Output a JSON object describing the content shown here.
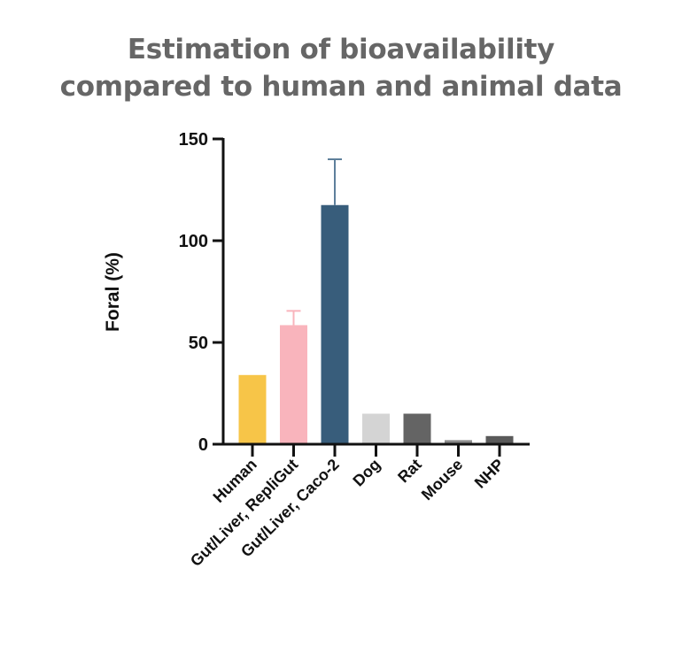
{
  "chart_data": {
    "type": "bar",
    "title_lines": [
      "Estimation of bioavailability",
      "compared to human and animal data"
    ],
    "xlabel": "",
    "ylabel": "Foral (%)",
    "ylim": [
      0,
      150
    ],
    "yticks": [
      0,
      50,
      100,
      150
    ],
    "grid": false,
    "categories": [
      "Human",
      "Gut/Liver, RepliGut",
      "Gut/Liver, Caco-2",
      "Dog",
      "Rat",
      "Mouse",
      "NHP"
    ],
    "values": [
      34,
      58.5,
      117.5,
      15,
      15,
      2,
      4
    ],
    "error_upper": [
      null,
      65.5,
      140,
      null,
      null,
      null,
      null
    ],
    "colors": [
      "#F7C548",
      "#F9B4BC",
      "#385D7B",
      "#D4D4D4",
      "#646464",
      "#8C8C8C",
      "#5A5A5A"
    ],
    "error_colors": [
      null,
      "#F9B4BC",
      "#5E7F9B",
      null,
      null,
      null,
      null
    ]
  }
}
